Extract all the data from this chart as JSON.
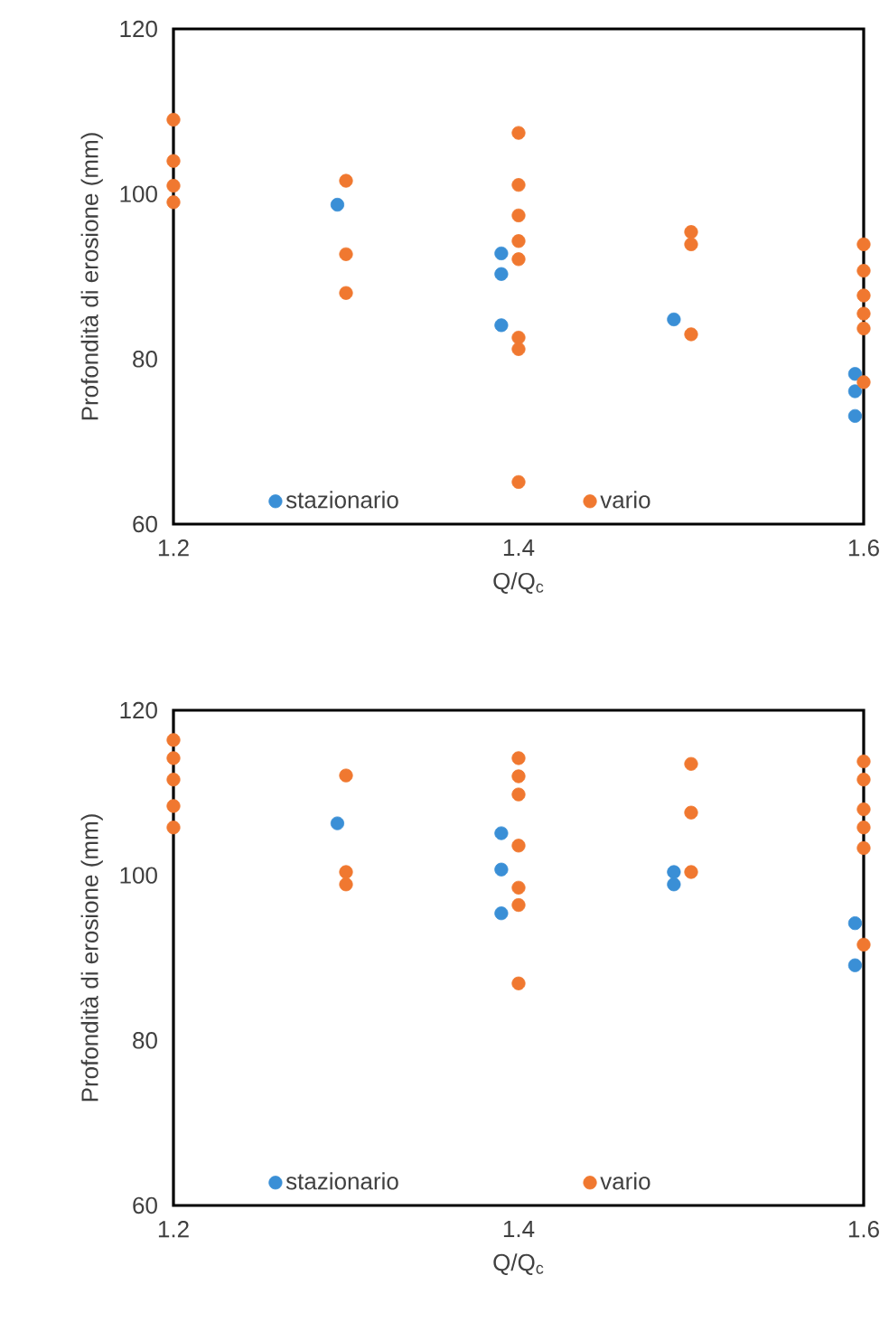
{
  "chart_data": [
    {
      "type": "scatter",
      "xlabel": "Q/Q$_{c}$",
      "ylabel": "Profondità di erosione (mm)",
      "xlim": [
        1.2,
        1.6
      ],
      "ylim": [
        60,
        120
      ],
      "xticks": [
        1.2,
        1.4,
        1.6
      ],
      "yticks": [
        60,
        80,
        100,
        120
      ],
      "legend": "bottom",
      "marker": "circle",
      "grid": false,
      "series": [
        {
          "name": "stazionario",
          "color": "#3a8fd6",
          "x": [
            1.295,
            1.39,
            1.39,
            1.39,
            1.49,
            1.595,
            1.595,
            1.595
          ],
          "values": [
            98.7,
            90.3,
            92.8,
            84.1,
            84.8,
            78.2,
            76.1,
            73.1
          ]
        },
        {
          "name": "vario",
          "color": "#f07830",
          "x": [
            1.2,
            1.2,
            1.2,
            1.2,
            1.3,
            1.3,
            1.3,
            1.4,
            1.4,
            1.4,
            1.4,
            1.4,
            1.4,
            1.4,
            1.4,
            1.5,
            1.5,
            1.5,
            1.6,
            1.6,
            1.6,
            1.6,
            1.6,
            1.6
          ],
          "values": [
            109,
            104,
            101,
            99,
            101.6,
            92.7,
            88,
            107.4,
            101.1,
            97.4,
            94.3,
            92.1,
            82.6,
            81.2,
            65.1,
            95.4,
            93.9,
            83,
            93.9,
            90.7,
            87.7,
            85.5,
            83.7,
            77.2
          ]
        }
      ]
    },
    {
      "type": "scatter",
      "xlabel": "Q/Q$_{c}$",
      "ylabel": "Profondità di erosione (mm)",
      "xlim": [
        1.2,
        1.6
      ],
      "ylim": [
        60,
        120
      ],
      "xticks": [
        1.2,
        1.4,
        1.6
      ],
      "yticks": [
        60,
        80,
        100,
        120
      ],
      "legend": "bottom",
      "marker": "circle",
      "grid": false,
      "series": [
        {
          "name": "stazionario",
          "color": "#3a8fd6",
          "x": [
            1.295,
            1.39,
            1.39,
            1.39,
            1.49,
            1.49,
            1.595,
            1.595
          ],
          "values": [
            106.3,
            105.1,
            100.7,
            95.4,
            100.4,
            98.9,
            94.2,
            89.1
          ]
        },
        {
          "name": "vario",
          "color": "#f07830",
          "x": [
            1.2,
            1.2,
            1.2,
            1.2,
            1.2,
            1.3,
            1.3,
            1.3,
            1.4,
            1.4,
            1.4,
            1.4,
            1.4,
            1.4,
            1.4,
            1.5,
            1.5,
            1.5,
            1.6,
            1.6,
            1.6,
            1.6,
            1.6,
            1.6
          ],
          "values": [
            116.4,
            114.2,
            111.6,
            108.4,
            105.8,
            112.1,
            100.4,
            98.9,
            114.2,
            112,
            109.8,
            103.6,
            98.5,
            96.4,
            86.9,
            113.5,
            107.6,
            100.4,
            113.8,
            111.6,
            108,
            105.8,
            103.3,
            91.6
          ]
        }
      ]
    }
  ]
}
